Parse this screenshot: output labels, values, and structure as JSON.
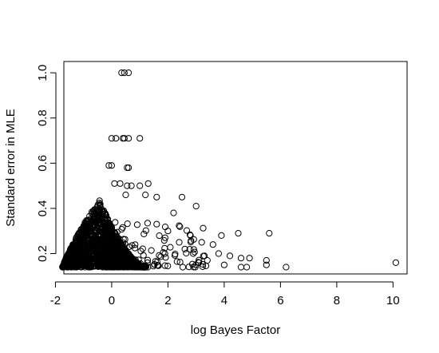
{
  "chart_data": {
    "type": "scatter",
    "title": "",
    "xlabel": "log Bayes Factor",
    "ylabel": "Standard error in MLE",
    "xlim": [
      -2,
      10.5
    ],
    "ylim": [
      0.1,
      1.05
    ],
    "x_ticks": [
      -2,
      0,
      2,
      4,
      6,
      8,
      10
    ],
    "y_ticks": [
      0.2,
      0.4,
      0.6,
      0.8,
      1.0
    ],
    "x_tick_labels": [
      "-2",
      "0",
      "2",
      "4",
      "6",
      "8",
      "10"
    ],
    "y_tick_labels": [
      "0.2",
      "0.4",
      "0.6",
      "0.8",
      "1.0"
    ],
    "grid": false,
    "legend": "none",
    "dense_region": {
      "x_min": -1.75,
      "peak_x": -0.45,
      "peak_y": 0.44,
      "base_y": 0.14,
      "x_right": 1.2,
      "n_points": 1800
    },
    "outliers": [
      [
        0.35,
        1.0
      ],
      [
        0.45,
        1.0
      ],
      [
        0.6,
        1.0
      ],
      [
        0.0,
        0.71
      ],
      [
        0.15,
        0.71
      ],
      [
        0.4,
        0.71
      ],
      [
        0.45,
        0.71
      ],
      [
        0.6,
        0.71
      ],
      [
        1.0,
        0.71
      ],
      [
        -0.1,
        0.59
      ],
      [
        0.0,
        0.59
      ],
      [
        0.55,
        0.58
      ],
      [
        0.6,
        0.58
      ],
      [
        0.1,
        0.51
      ],
      [
        0.3,
        0.51
      ],
      [
        0.55,
        0.5
      ],
      [
        0.7,
        0.5
      ],
      [
        1.0,
        0.5
      ],
      [
        1.3,
        0.51
      ],
      [
        0.5,
        0.46
      ],
      [
        1.2,
        0.46
      ],
      [
        1.6,
        0.45
      ],
      [
        2.5,
        0.45
      ],
      [
        3.0,
        0.41
      ],
      [
        2.2,
        0.38
      ],
      [
        1.6,
        0.33
      ],
      [
        2.0,
        0.3
      ],
      [
        2.8,
        0.28
      ],
      [
        3.9,
        0.28
      ],
      [
        4.5,
        0.29
      ],
      [
        5.6,
        0.29
      ],
      [
        3.2,
        0.25
      ],
      [
        3.6,
        0.24
      ],
      [
        3.8,
        0.2
      ],
      [
        4.2,
        0.19
      ],
      [
        4.6,
        0.18
      ],
      [
        4.9,
        0.18
      ],
      [
        3.4,
        0.17
      ],
      [
        4.0,
        0.15
      ],
      [
        4.6,
        0.14
      ],
      [
        4.8,
        0.14
      ],
      [
        5.5,
        0.15
      ],
      [
        5.5,
        0.17
      ],
      [
        6.2,
        0.14
      ],
      [
        10.1,
        0.16
      ],
      [
        2.6,
        0.22
      ],
      [
        2.9,
        0.2
      ],
      [
        3.1,
        0.16
      ],
      [
        2.4,
        0.25
      ],
      [
        1.9,
        0.27
      ]
    ]
  }
}
